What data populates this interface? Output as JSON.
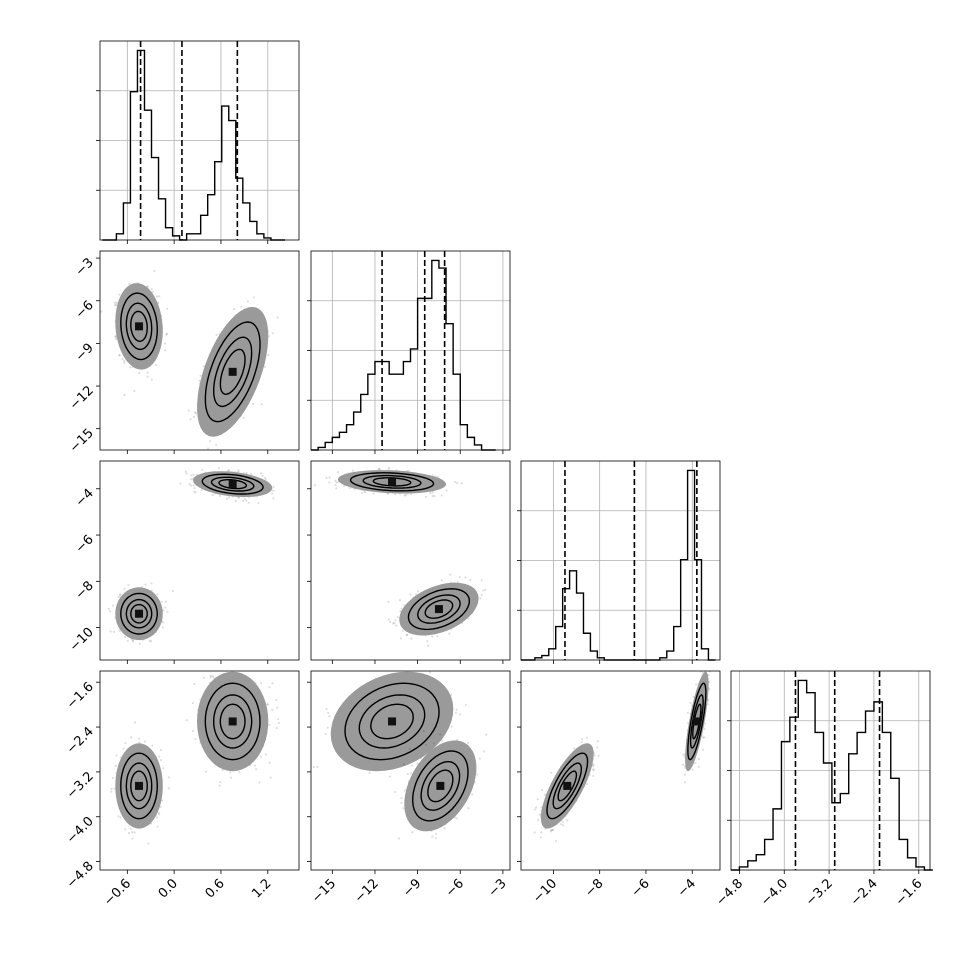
{
  "chart_data": {
    "type": "corner",
    "n_params": 4,
    "grid": true,
    "ranges": [
      [
        -0.95,
        1.6
      ],
      [
        -16.5,
        -2.5
      ],
      [
        -11.4,
        -2.8
      ],
      [
        -4.95,
        -1.4
      ]
    ],
    "ticks": [
      {
        "values": [
          -0.6,
          0.0,
          0.6,
          1.2
        ],
        "labels": [
          "−0.6",
          "0.0",
          "0.6",
          "1.2"
        ]
      },
      {
        "values": [
          -15,
          -12,
          -9,
          -6,
          -3
        ],
        "labels": [
          "−15",
          "−12",
          "−9",
          "−6",
          "−3"
        ]
      },
      {
        "values": [
          -10,
          -8,
          -6,
          -4
        ],
        "labels": [
          "−10",
          "−8",
          "−6",
          "−4"
        ]
      },
      {
        "values": [
          -4.8,
          -4.0,
          -3.2,
          -2.4,
          -1.6
        ],
        "labels": [
          "−4.8",
          "−4.0",
          "−3.2",
          "−2.4",
          "−1.6"
        ]
      }
    ],
    "histograms": [
      {
        "param": 0,
        "bin_edges": [
          -0.92,
          -0.83,
          -0.74,
          -0.65,
          -0.56,
          -0.47,
          -0.38,
          -0.29,
          -0.2,
          -0.11,
          -0.02,
          0.07,
          0.16,
          0.25,
          0.34,
          0.43,
          0.52,
          0.61,
          0.7,
          0.79,
          0.88,
          0.97,
          1.06,
          1.15,
          1.24,
          1.33,
          1.42
        ],
        "counts": [
          0,
          0,
          3,
          18,
          72,
          92,
          63,
          40,
          20,
          6,
          2,
          0,
          3,
          3,
          12,
          22,
          38,
          65,
          58,
          30,
          18,
          9,
          3,
          1,
          0,
          0
        ],
        "quantiles": [
          -0.43,
          0.1,
          0.81
        ]
      },
      {
        "param": 1,
        "bin_edges": [
          -16.5,
          -16.0,
          -15.5,
          -15.0,
          -14.5,
          -14.0,
          -13.5,
          -13.0,
          -12.5,
          -12.0,
          -11.5,
          -11.0,
          -10.5,
          -10.0,
          -9.5,
          -9.0,
          -8.5,
          -8.0,
          -7.5,
          -7.0,
          -6.5,
          -6.0,
          -5.5,
          -5.0,
          -4.5,
          -4.0,
          -3.5
        ],
        "counts": [
          0,
          1,
          3,
          5,
          7,
          10,
          15,
          22,
          30,
          35,
          35,
          30,
          30,
          35,
          40,
          60,
          60,
          75,
          72,
          50,
          30,
          10,
          5,
          2,
          0,
          0
        ],
        "quantiles": [
          -11.5,
          -8.5,
          -7.1
        ]
      },
      {
        "param": 2,
        "bin_edges": [
          -11.4,
          -11.1,
          -10.8,
          -10.5,
          -10.2,
          -9.9,
          -9.6,
          -9.3,
          -9.0,
          -8.7,
          -8.4,
          -8.1,
          -7.8,
          -7.5,
          -7.2,
          -6.9,
          -6.6,
          -6.3,
          -6.0,
          -5.7,
          -5.4,
          -5.1,
          -4.8,
          -4.5,
          -4.2,
          -3.9,
          -3.6,
          -3.3,
          -3.0
        ],
        "counts": [
          0,
          0,
          1,
          2,
          5,
          15,
          32,
          40,
          30,
          12,
          4,
          1,
          0,
          0,
          0,
          0,
          0,
          0,
          0,
          0,
          1,
          4,
          15,
          45,
          85,
          45,
          5,
          0
        ],
        "quantiles": [
          -9.5,
          -6.5,
          -3.8
        ]
      },
      {
        "param": 3,
        "bin_edges": [
          -4.95,
          -4.8,
          -4.65,
          -4.5,
          -4.35,
          -4.2,
          -4.05,
          -3.9,
          -3.75,
          -3.6,
          -3.45,
          -3.3,
          -3.15,
          -3.0,
          -2.85,
          -2.7,
          -2.55,
          -2.4,
          -2.25,
          -2.1,
          -1.95,
          -1.8,
          -1.65,
          -1.5,
          -1.35
        ],
        "counts": [
          0,
          1,
          3,
          5,
          10,
          20,
          42,
          50,
          62,
          58,
          45,
          35,
          22,
          25,
          38,
          45,
          52,
          55,
          45,
          30,
          10,
          4,
          1,
          0
        ],
        "quantiles": [
          -3.8,
          -3.1,
          -2.3
        ]
      }
    ],
    "joint_panels": [
      {
        "row": 1,
        "col": 0,
        "clusters": [
          {
            "center": [
              -0.45,
              -7.8
            ],
            "sd": [
              0.12,
              1.2
            ],
            "rho": -0.1,
            "weight": 1.0
          },
          {
            "center": [
              0.75,
              -11.0
            ],
            "sd": [
              0.18,
              1.8
            ],
            "rho": 0.55,
            "weight": 1.0
          }
        ]
      },
      {
        "row": 2,
        "col": 0,
        "clusters": [
          {
            "center": [
              -0.45,
              -9.4
            ],
            "sd": [
              0.12,
              0.45
            ],
            "rho": 0.0,
            "weight": 1.0
          },
          {
            "center": [
              0.75,
              -3.8
            ],
            "sd": [
              0.2,
              0.22
            ],
            "rho": -0.3,
            "weight": 1.0
          }
        ]
      },
      {
        "row": 2,
        "col": 1,
        "clusters": [
          {
            "center": [
              -10.8,
              -3.7
            ],
            "sd": [
              1.5,
              0.2
            ],
            "rho": -0.2,
            "weight": 1.0
          },
          {
            "center": [
              -7.5,
              -9.2
            ],
            "sd": [
              1.1,
              0.45
            ],
            "rho": 0.4,
            "weight": 1.0
          }
        ]
      },
      {
        "row": 3,
        "col": 0,
        "clusters": [
          {
            "center": [
              -0.45,
              -3.45
            ],
            "sd": [
              0.12,
              0.3
            ],
            "rho": 0.0,
            "weight": 1.0
          },
          {
            "center": [
              0.75,
              -2.3
            ],
            "sd": [
              0.18,
              0.35
            ],
            "rho": 0.0,
            "weight": 1.0
          }
        ]
      },
      {
        "row": 3,
        "col": 1,
        "clusters": [
          {
            "center": [
              -10.8,
              -2.3
            ],
            "sd": [
              1.7,
              0.35
            ],
            "rho": 0.25,
            "weight": 1.0
          },
          {
            "center": [
              -7.4,
              -3.45
            ],
            "sd": [
              1.0,
              0.32
            ],
            "rho": 0.4,
            "weight": 1.0
          }
        ]
      },
      {
        "row": 3,
        "col": 2,
        "clusters": [
          {
            "center": [
              -9.4,
              -3.45
            ],
            "sd": [
              0.45,
              0.3
            ],
            "rho": 0.75,
            "weight": 1.0
          },
          {
            "center": [
              -3.8,
              -2.3
            ],
            "sd": [
              0.2,
              0.35
            ],
            "rho": 0.75,
            "weight": 1.0
          }
        ]
      }
    ]
  }
}
